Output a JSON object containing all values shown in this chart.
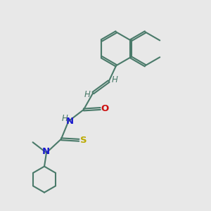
{
  "background_color": "#e8e8e8",
  "bond_color": "#4a7a6a",
  "n_color": "#1a1acc",
  "o_color": "#cc1111",
  "s_color": "#bbaa00",
  "h_color": "#4a7a6a",
  "line_width": 1.5,
  "dbo": 0.08,
  "figsize": [
    3.0,
    3.0
  ],
  "dpi": 100,
  "xlim": [
    0,
    10
  ],
  "ylim": [
    0,
    10
  ]
}
